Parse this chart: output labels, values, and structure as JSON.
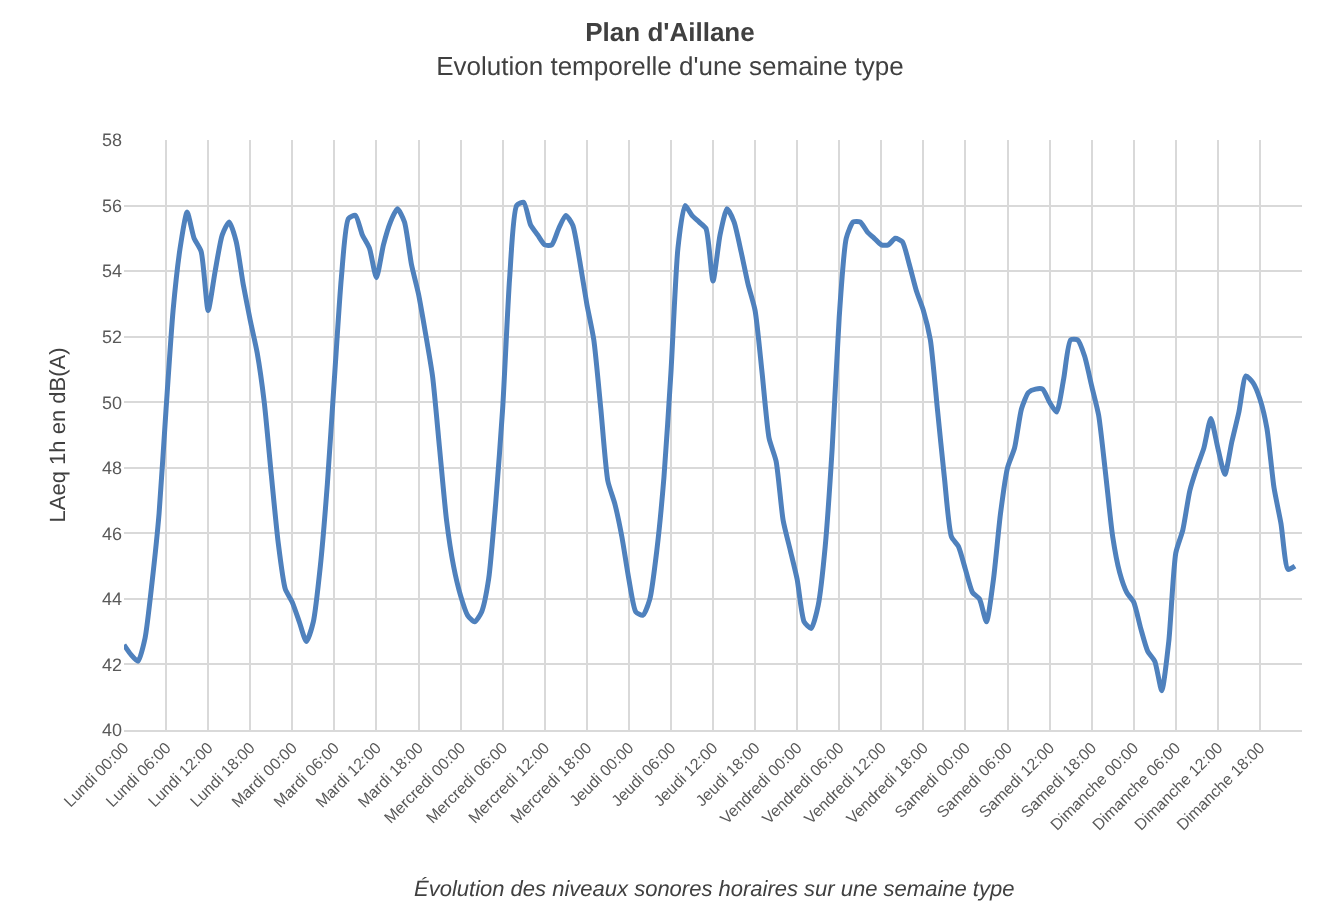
{
  "chart_data": {
    "type": "line",
    "title": "Plan d'Aillane",
    "subtitle": "Evolution temporelle d'une semaine type",
    "ylabel": "LAeq 1h en dB(A)",
    "annotations": [
      "Évolution des niveaux sonores horaires sur une semaine type"
    ],
    "categories": [
      "Lundi 00:00",
      null,
      null,
      null,
      null,
      null,
      "Lundi 06:00",
      null,
      null,
      null,
      null,
      null,
      "Lundi 12:00",
      null,
      null,
      null,
      null,
      null,
      "Lundi 18:00",
      null,
      null,
      null,
      null,
      null,
      "Mardi 00:00",
      null,
      null,
      null,
      null,
      null,
      "Mardi 06:00",
      null,
      null,
      null,
      null,
      null,
      "Mardi 12:00",
      null,
      null,
      null,
      null,
      null,
      "Mardi 18:00",
      null,
      null,
      null,
      null,
      null,
      "Mercredi 00:00",
      null,
      null,
      null,
      null,
      null,
      "Mercredi 06:00",
      null,
      null,
      null,
      null,
      null,
      "Mercredi 12:00",
      null,
      null,
      null,
      null,
      null,
      "Mercredi 18:00",
      null,
      null,
      null,
      null,
      null,
      "Jeudi 00:00",
      null,
      null,
      null,
      null,
      null,
      "Jeudi 06:00",
      null,
      null,
      null,
      null,
      null,
      "Jeudi 12:00",
      null,
      null,
      null,
      null,
      null,
      "Jeudi 18:00",
      null,
      null,
      null,
      null,
      null,
      "Vendredi 00:00",
      null,
      null,
      null,
      null,
      null,
      "Vendredi 06:00",
      null,
      null,
      null,
      null,
      null,
      "Vendredi 12:00",
      null,
      null,
      null,
      null,
      null,
      "Vendredi 18:00",
      null,
      null,
      null,
      null,
      null,
      "Samedi 00:00",
      null,
      null,
      null,
      null,
      null,
      "Samedi 06:00",
      null,
      null,
      null,
      null,
      null,
      "Samedi 12:00",
      null,
      null,
      null,
      null,
      null,
      "Samedi 18:00",
      null,
      null,
      null,
      null,
      null,
      "Dimanche 00:00",
      null,
      null,
      null,
      null,
      null,
      "Dimanche 06:00",
      null,
      null,
      null,
      null,
      null,
      "Dimanche 12:00",
      null,
      null,
      null,
      null,
      null,
      "Dimanche 18:00",
      null,
      null,
      null,
      null,
      null
    ],
    "series": [
      {
        "color": "#4f81bd",
        "values": [
          42.6,
          42.3,
          42.1,
          42.8,
          44.5,
          46.6,
          49.8,
          52.8,
          54.7,
          55.8,
          55.0,
          54.6,
          52.8,
          54.0,
          55.1,
          55.5,
          54.9,
          53.6,
          52.5,
          51.5,
          50.0,
          47.8,
          45.7,
          44.3,
          43.9,
          43.3,
          42.7,
          43.3,
          45.0,
          47.5,
          50.7,
          53.8,
          55.6,
          55.7,
          55.1,
          54.7,
          53.8,
          54.8,
          55.5,
          55.9,
          55.5,
          54.2,
          53.3,
          52.1,
          50.8,
          48.6,
          46.4,
          45.0,
          44.1,
          43.5,
          43.3,
          43.6,
          44.6,
          46.9,
          49.8,
          53.8,
          56.0,
          56.1,
          55.4,
          55.1,
          54.8,
          54.8,
          55.3,
          55.7,
          55.4,
          54.3,
          53.0,
          51.9,
          49.8,
          47.6,
          46.9,
          45.9,
          44.6,
          43.6,
          43.5,
          44.0,
          45.5,
          47.7,
          50.9,
          54.7,
          56.0,
          55.7,
          55.5,
          55.3,
          53.7,
          55.1,
          55.9,
          55.5,
          54.6,
          53.6,
          52.8,
          50.9,
          48.9,
          48.2,
          46.4,
          45.5,
          44.6,
          43.3,
          43.1,
          43.8,
          45.6,
          48.6,
          52.6,
          55.0,
          55.5,
          55.5,
          55.2,
          55.0,
          54.8,
          54.8,
          55.0,
          54.9,
          54.2,
          53.4,
          52.8,
          51.9,
          49.8,
          47.7,
          45.9,
          45.6,
          44.9,
          44.2,
          44.0,
          43.3,
          44.6,
          46.6,
          48.0,
          48.6,
          49.8,
          50.3,
          50.4,
          50.4,
          50.0,
          49.7,
          50.7,
          51.9,
          51.9,
          51.4,
          50.5,
          49.6,
          47.8,
          45.9,
          44.8,
          44.2,
          43.9,
          43.1,
          42.4,
          42.1,
          41.2,
          42.7,
          45.4,
          46.1,
          47.3,
          48.0,
          48.6,
          49.5,
          48.6,
          47.8,
          48.8,
          49.7,
          50.8,
          50.6,
          50.1,
          49.2,
          47.4,
          46.3,
          44.9,
          45.0
        ]
      }
    ],
    "ylim": [
      40,
      58
    ],
    "yticks": [
      40,
      42,
      44,
      46,
      48,
      50,
      52,
      54,
      56,
      58
    ],
    "grid": true,
    "marker": "none",
    "line_style": "solid"
  }
}
